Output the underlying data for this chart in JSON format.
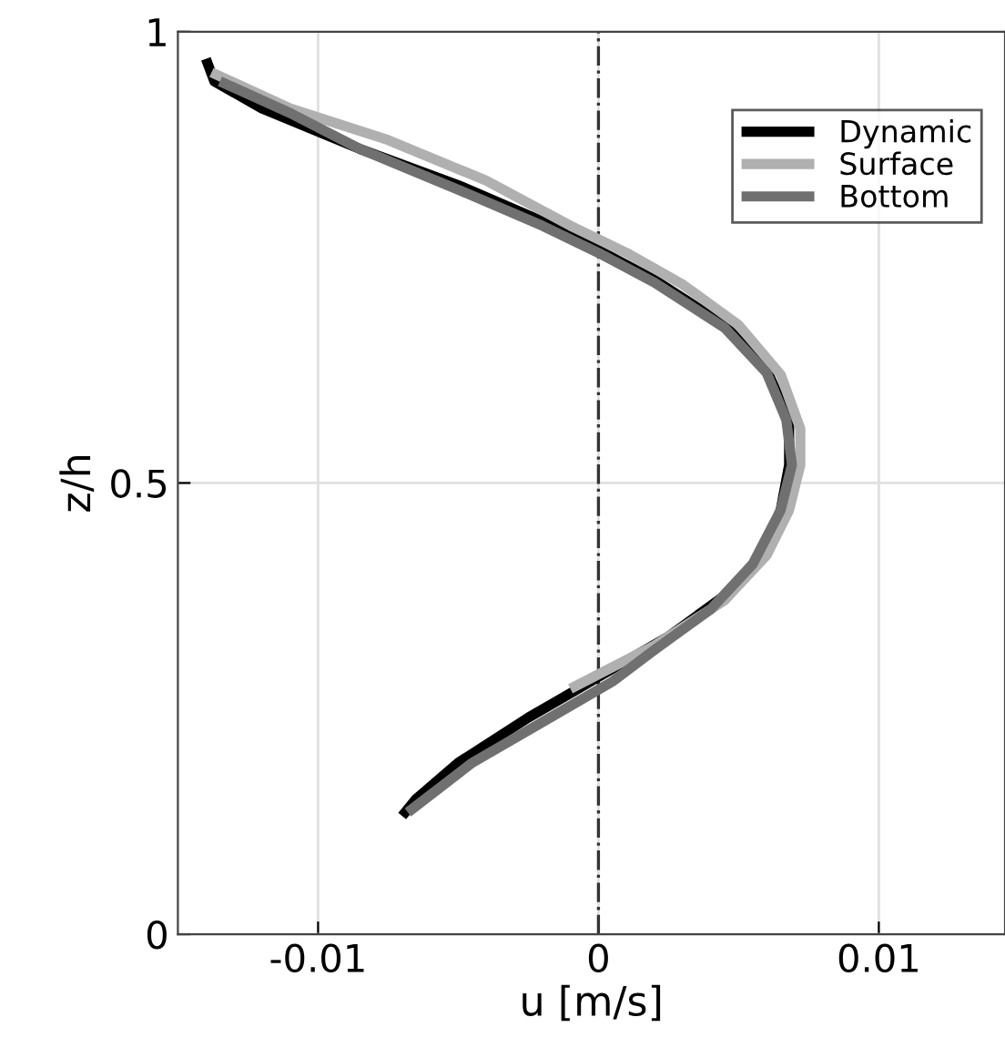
{
  "chart_data": {
    "type": "line",
    "xlabel": "u [m/s]",
    "ylabel": "z/h",
    "xlim": [
      -0.015,
      0.0145
    ],
    "ylim": [
      0,
      1
    ],
    "xticks": [
      -0.01,
      0,
      0.01
    ],
    "yticks": [
      0,
      0.5,
      1
    ],
    "grid": true,
    "legend": "top right",
    "line_style": "solid",
    "marker": "none",
    "ref_lines": [
      {
        "axis": "x",
        "value": 0,
        "label": null,
        "color": "#333333",
        "line_style": "dashdot"
      }
    ],
    "series": [
      {
        "name": "Dynamic",
        "color": "#000000",
        "x": [
          -0.014,
          -0.0137,
          -0.012,
          -0.0085,
          -0.005,
          -0.002,
          0,
          0.002,
          0.0045,
          0.006,
          0.0068,
          0.0068,
          0.0065,
          0.0058,
          0.0045,
          0.0025,
          0,
          -0.0025,
          -0.005,
          -0.0065,
          -0.007
        ],
        "values": [
          0.97,
          0.945,
          0.915,
          0.87,
          0.83,
          0.79,
          0.758,
          0.725,
          0.675,
          0.625,
          0.57,
          0.52,
          0.47,
          0.42,
          0.375,
          0.33,
          0.285,
          0.24,
          0.19,
          0.15,
          0.131
        ]
      },
      {
        "name": "Surface",
        "color": "#b0b0b0",
        "x": [
          -0.0138,
          -0.011,
          -0.0075,
          -0.004,
          -0.001,
          0.001,
          0.003,
          0.005,
          0.0065,
          0.0072,
          0.0072,
          0.0068,
          0.006,
          0.0045,
          0.002,
          -0.001
        ],
        "values": [
          0.955,
          0.915,
          0.88,
          0.835,
          0.785,
          0.755,
          0.72,
          0.675,
          0.62,
          0.56,
          0.52,
          0.47,
          0.42,
          0.37,
          0.32,
          0.272
        ]
      },
      {
        "name": "Bottom",
        "color": "#707070",
        "x": [
          -0.0135,
          -0.011,
          -0.0085,
          -0.005,
          -0.002,
          0,
          0.002,
          0.0045,
          0.006,
          0.0067,
          0.0069,
          0.0065,
          0.0055,
          0.004,
          0.002,
          0.0005,
          -0.002,
          -0.0045,
          -0.0068
        ],
        "values": [
          0.945,
          0.91,
          0.87,
          0.825,
          0.785,
          0.755,
          0.722,
          0.672,
          0.622,
          0.57,
          0.52,
          0.47,
          0.41,
          0.36,
          0.315,
          0.28,
          0.235,
          0.19,
          0.135
        ]
      }
    ]
  }
}
